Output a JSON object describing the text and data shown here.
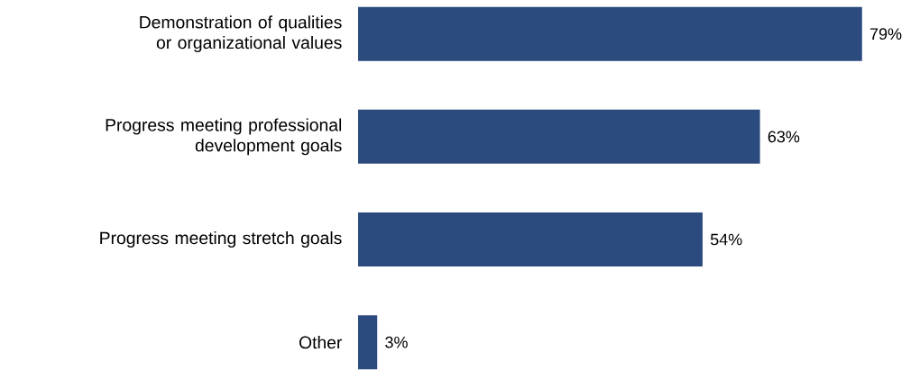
{
  "chart_data": {
    "type": "bar",
    "orientation": "horizontal",
    "categories": [
      "Demonstration of qualities or organizational values",
      "Progress meeting professional development goals",
      "Progress meeting stretch goals",
      "Other"
    ],
    "values": [
      79,
      63,
      54,
      3
    ],
    "value_labels": [
      "79%",
      "63%",
      "54%",
      "3%"
    ],
    "color": "#2b4a7e"
  }
}
